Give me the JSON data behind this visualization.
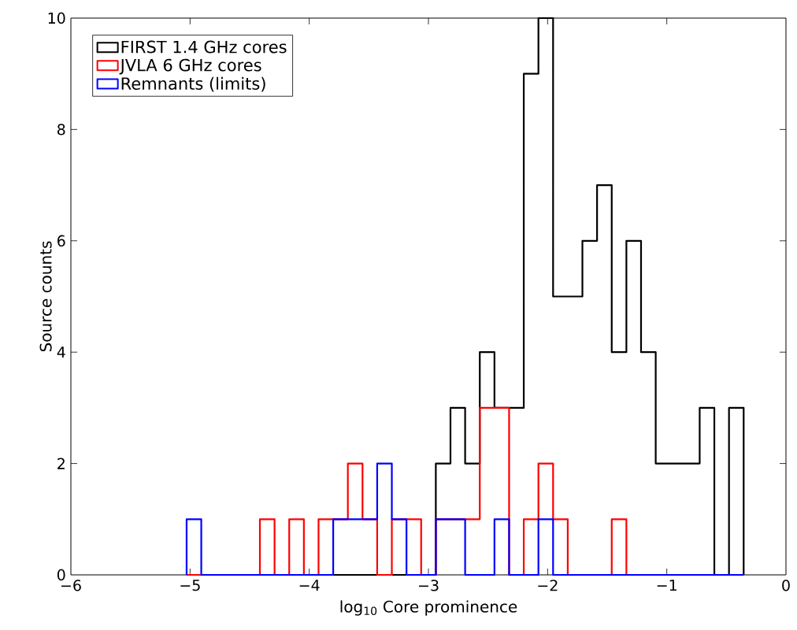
{
  "chart_data": {
    "type": "histogram",
    "xlabel": "log$_{10}$ Core prominence",
    "ylabel": "Source counts",
    "xlim": [
      -6,
      0
    ],
    "ylim": [
      0,
      10
    ],
    "xticks": [
      {
        "value": -6,
        "label": "−6"
      },
      {
        "value": -5,
        "label": "−5"
      },
      {
        "value": -4,
        "label": "−4"
      },
      {
        "value": -3,
        "label": "−3"
      },
      {
        "value": -2,
        "label": "−2"
      },
      {
        "value": -1,
        "label": "−1"
      },
      {
        "value": 0,
        "label": "0"
      }
    ],
    "yticks": [
      {
        "value": 0,
        "label": "0"
      },
      {
        "value": 2,
        "label": "2"
      },
      {
        "value": 4,
        "label": "4"
      },
      {
        "value": 6,
        "label": "6"
      },
      {
        "value": 8,
        "label": "8"
      },
      {
        "value": 10,
        "label": "10"
      }
    ],
    "legend": "top left",
    "bins": [
      -5.029,
      -4.906,
      -4.783,
      -4.66,
      -4.537,
      -4.414,
      -4.291,
      -4.168,
      -4.045,
      -3.922,
      -3.799,
      -3.676,
      -3.553,
      -3.43,
      -3.307,
      -3.184,
      -3.061,
      -2.938,
      -2.815,
      -2.692,
      -2.569,
      -2.446,
      -2.323,
      -2.2,
      -2.077,
      -1.954,
      -1.831,
      -1.708,
      -1.585,
      -1.462,
      -1.339,
      -1.216,
      -1.093,
      -0.97,
      -0.847,
      -0.724,
      -0.601,
      -0.478,
      -0.355
    ],
    "series": [
      {
        "name": "FIRST 1.4 GHz cores",
        "color": "#000000",
        "values": [
          0,
          0,
          0,
          0,
          0,
          0,
          0,
          0,
          0,
          0,
          0,
          0,
          0,
          0,
          0,
          0,
          0,
          2,
          3,
          2,
          4,
          3,
          3,
          9,
          10,
          5,
          5,
          6,
          7,
          4,
          6,
          4,
          2,
          2,
          2,
          3,
          0,
          3
        ]
      },
      {
        "name": "JVLA 6 GHz cores",
        "color": "#ff0000",
        "values": [
          0,
          0,
          0,
          0,
          0,
          1,
          0,
          1,
          0,
          1,
          1,
          2,
          1,
          0,
          1,
          1,
          0,
          1,
          1,
          1,
          3,
          3,
          0,
          1,
          2,
          1,
          0,
          0,
          0,
          1,
          0,
          0,
          0,
          0,
          0,
          0,
          0,
          0
        ]
      },
      {
        "name": "Remnants (limits)",
        "color": "#0000ff",
        "values": [
          1,
          0,
          0,
          0,
          0,
          0,
          0,
          0,
          0,
          0,
          1,
          1,
          1,
          2,
          1,
          0,
          0,
          1,
          1,
          0,
          0,
          1,
          0,
          0,
          1,
          0,
          0,
          0,
          0,
          0,
          0,
          0,
          0,
          0,
          0,
          0,
          0,
          0
        ]
      }
    ]
  }
}
